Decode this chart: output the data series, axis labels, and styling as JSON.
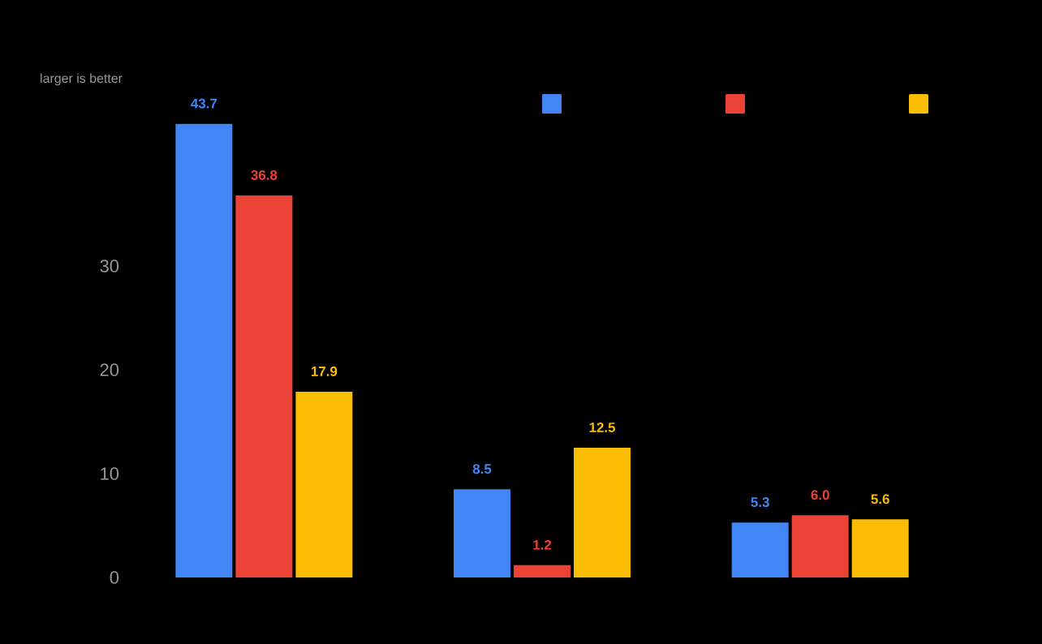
{
  "chart_data": {
    "type": "bar",
    "ylabel": "larger is better",
    "categories": [
      null,
      null,
      null
    ],
    "series": [
      {
        "color": "#4285f4",
        "values": [
          43.7,
          8.5,
          5.3
        ],
        "value_labels": [
          "43.7",
          "8.5",
          "5.3"
        ]
      },
      {
        "color": "#ea4335",
        "values": [
          36.8,
          1.2,
          6.0
        ],
        "value_labels": [
          "36.8",
          "1.2",
          "6.0"
        ]
      },
      {
        "color": "#fbbc04",
        "values": [
          17.9,
          12.5,
          5.6
        ],
        "value_labels": [
          "17.9",
          "12.5",
          "5.6"
        ]
      }
    ],
    "ylim": [
      0,
      46
    ],
    "yticks": [
      0,
      10,
      20,
      30
    ],
    "grid": false
  }
}
